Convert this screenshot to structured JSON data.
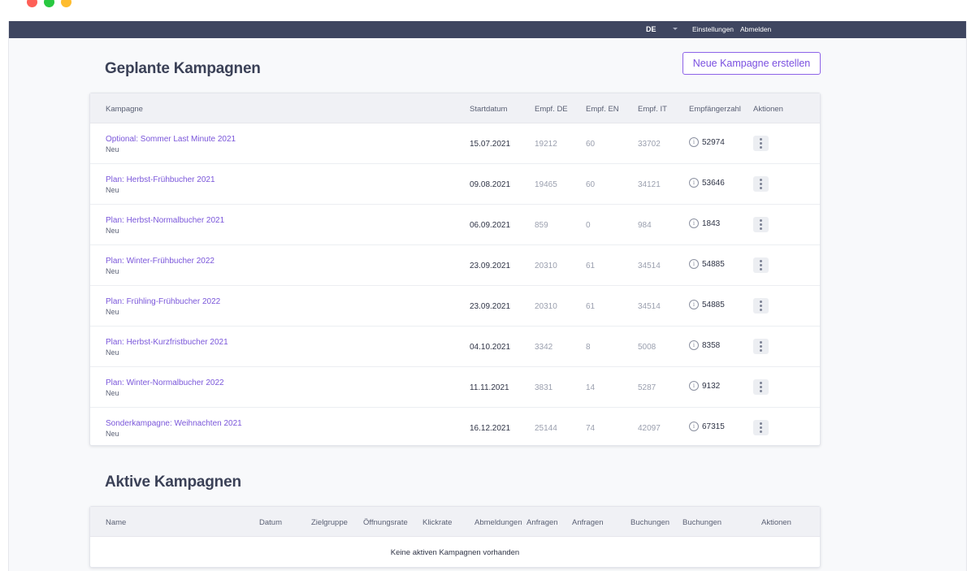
{
  "topbar": {
    "language": "DE",
    "settings": "Einstellungen",
    "logout": "Abmelden"
  },
  "planned": {
    "title": "Geplante Kampagnen",
    "new_button": "Neue Kampagne erstellen",
    "columns": [
      "Kampagne",
      "Startdatum",
      "Empf. DE",
      "Empf. EN",
      "Empf. IT",
      "Empfängerzahl",
      "Aktionen"
    ],
    "rows": [
      {
        "name": "Optional: Sommer Last Minute 2021",
        "status": "Neu",
        "start": "15.07.2021",
        "de": "19212",
        "en": "60",
        "it": "33702",
        "recipients": "52974"
      },
      {
        "name": "Plan: Herbst-Frühbucher 2021",
        "status": "Neu",
        "start": "09.08.2021",
        "de": "19465",
        "en": "60",
        "it": "34121",
        "recipients": "53646"
      },
      {
        "name": "Plan: Herbst-Normalbucher 2021",
        "status": "Neu",
        "start": "06.09.2021",
        "de": "859",
        "en": "0",
        "it": "984",
        "recipients": "1843"
      },
      {
        "name": "Plan: Winter-Frühbucher 2022",
        "status": "Neu",
        "start": "23.09.2021",
        "de": "20310",
        "en": "61",
        "it": "34514",
        "recipients": "54885"
      },
      {
        "name": "Plan: Frühling-Frühbucher 2022",
        "status": "Neu",
        "start": "23.09.2021",
        "de": "20310",
        "en": "61",
        "it": "34514",
        "recipients": "54885"
      },
      {
        "name": "Plan: Herbst-Kurzfristbucher 2021",
        "status": "Neu",
        "start": "04.10.2021",
        "de": "3342",
        "en": "8",
        "it": "5008",
        "recipients": "8358"
      },
      {
        "name": "Plan: Winter-Normalbucher 2022",
        "status": "Neu",
        "start": "11.11.2021",
        "de": "3831",
        "en": "14",
        "it": "5287",
        "recipients": "9132"
      },
      {
        "name": "Sonderkampagne: Weihnachten 2021",
        "status": "Neu",
        "start": "16.12.2021",
        "de": "25144",
        "en": "74",
        "it": "42097",
        "recipients": "67315"
      }
    ]
  },
  "active": {
    "title": "Aktive Kampagnen",
    "columns": [
      "Name",
      "Datum",
      "Zielgruppe",
      "Öffnungsrate",
      "Klickrate",
      "Abmeldungen",
      "Anfragen",
      "Anfragen",
      "Buchungen",
      "Buchungen",
      "Aktionen"
    ],
    "empty": "Keine aktiven Kampagnen vorhanden"
  },
  "icons": {
    "info": "info-circle-icon",
    "actions": "kebab-menu-icon",
    "language_caret": "chevron-down-icon"
  }
}
